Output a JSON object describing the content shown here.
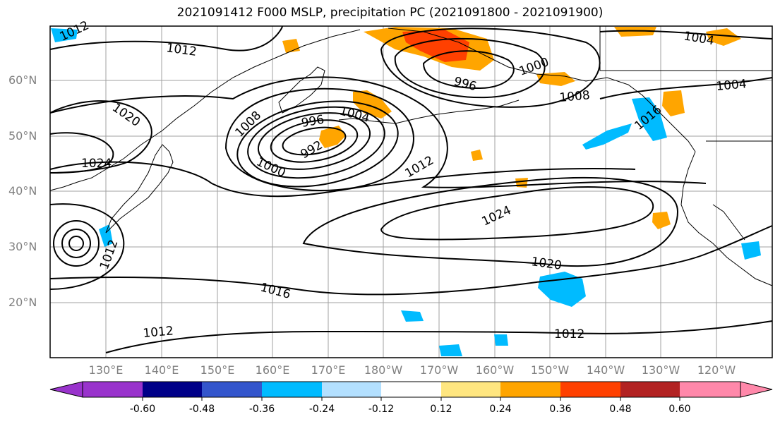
{
  "title": "2021091412 F000 MSLP, precipitation PC (2021091800 - 2021091900)",
  "lat_labels": [
    "60°N",
    "50°N",
    "40°N",
    "30°N",
    "20°N"
  ],
  "lon_labels": [
    "130°E",
    "140°E",
    "150°E",
    "160°E",
    "170°E",
    "180°W",
    "170°W",
    "160°W",
    "150°W",
    "140°W",
    "130°W",
    "120°W"
  ],
  "contour_labels": [
    "1012",
    "1012",
    "1004",
    "1000",
    "996",
    "1008",
    "1004",
    "1020",
    "1024",
    "1008",
    "1004",
    "996",
    "992",
    "1000",
    "1012",
    "1016",
    "1024",
    "1012",
    "1020",
    "1016",
    "1012",
    "1012"
  ],
  "colorbar": {
    "labels": [
      "-0.60",
      "-0.48",
      "-0.36",
      "-0.24",
      "-0.12",
      "0.12",
      "0.24",
      "0.36",
      "0.48",
      "0.60"
    ],
    "colors": [
      "#9933cc",
      "#000088",
      "#3355cc",
      "#00bbff",
      "#b3e0ff",
      "#ffffff",
      "#ffe680",
      "#ffa500",
      "#ff4000",
      "#b22222",
      "#ff88aa"
    ]
  },
  "colors": {
    "positive_light": "#ffe680",
    "positive_mid": "#ffa500",
    "positive_high": "#ff4000",
    "negative": "#00bbff",
    "grid": "#a0a0a0",
    "axis_label": "#808080"
  }
}
